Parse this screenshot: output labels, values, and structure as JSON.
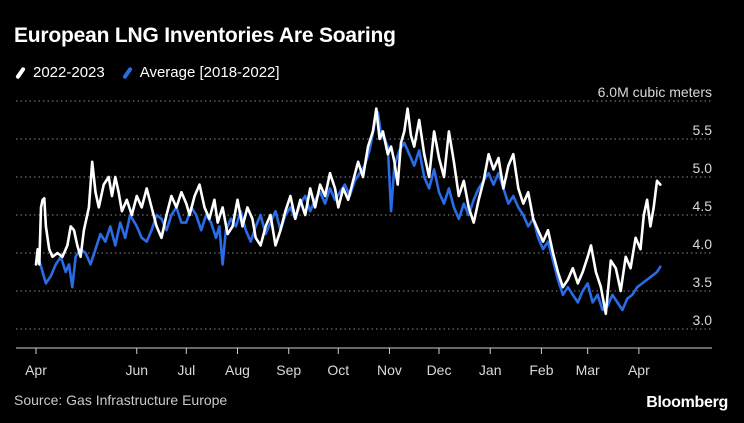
{
  "colors": {
    "background": "#000000",
    "series_2022": "#ffffff",
    "series_avg": "#2a6be6",
    "grid": "#8a8a8a"
  },
  "brand": "Bloomberg",
  "source": "Source: Gas Infrastructure Europe",
  "chart_data": {
    "type": "line",
    "title": "European LNG Inventories Are Soaring",
    "unit": "6.0M cubic meters",
    "ylim": [
      2.75,
      6.0
    ],
    "y_ticks": [
      "6.0M cubic meters",
      "5.5",
      "5.0",
      "4.5",
      "4.0",
      "3.5",
      "3.0"
    ],
    "x_ticks": [
      "Apr",
      "Jun",
      "Jul",
      "Aug",
      "Sep",
      "Oct",
      "Nov",
      "Dec",
      "Jan",
      "Feb",
      "Mar",
      "Apr"
    ],
    "x_tick_dates": [
      "2022-04-01",
      "2022-06-01",
      "2022-07-01",
      "2022-08-01",
      "2022-09-01",
      "2022-10-01",
      "2022-11-01",
      "2022-12-01",
      "2023-01-01",
      "2023-02-01",
      "2023-03-01",
      "2023-04-01"
    ],
    "xlim": [
      "2022-04-01",
      "2023-04-15"
    ],
    "grid": "horizontal dotted",
    "legend": "top-left",
    "series": [
      {
        "name": "2022-2023",
        "color": "#ffffff",
        "points": [
          [
            "2022-04-01",
            3.85
          ],
          [
            "2022-04-02",
            4.05
          ],
          [
            "2022-04-03",
            3.85
          ],
          [
            "2022-04-04",
            4.6
          ],
          [
            "2022-04-05",
            4.7
          ],
          [
            "2022-04-06",
            4.72
          ],
          [
            "2022-04-07",
            4.35
          ],
          [
            "2022-04-09",
            4.05
          ],
          [
            "2022-04-11",
            3.95
          ],
          [
            "2022-04-14",
            4.0
          ],
          [
            "2022-04-17",
            3.95
          ],
          [
            "2022-04-20",
            4.1
          ],
          [
            "2022-04-22",
            4.35
          ],
          [
            "2022-04-24",
            4.3
          ],
          [
            "2022-04-26",
            4.1
          ],
          [
            "2022-04-28",
            3.95
          ],
          [
            "2022-04-30",
            4.3
          ],
          [
            "2022-05-03",
            4.6
          ],
          [
            "2022-05-05",
            5.2
          ],
          [
            "2022-05-07",
            4.8
          ],
          [
            "2022-05-09",
            4.6
          ],
          [
            "2022-05-12",
            4.9
          ],
          [
            "2022-05-15",
            5.0
          ],
          [
            "2022-05-17",
            4.75
          ],
          [
            "2022-05-19",
            5.0
          ],
          [
            "2022-05-21",
            4.8
          ],
          [
            "2022-05-23",
            4.55
          ],
          [
            "2022-05-26",
            4.7
          ],
          [
            "2022-05-29",
            4.5
          ],
          [
            "2022-06-01",
            4.75
          ],
          [
            "2022-06-04",
            4.6
          ],
          [
            "2022-06-07",
            4.85
          ],
          [
            "2022-06-10",
            4.6
          ],
          [
            "2022-06-13",
            4.35
          ],
          [
            "2022-06-16",
            4.2
          ],
          [
            "2022-06-19",
            4.5
          ],
          [
            "2022-06-22",
            4.75
          ],
          [
            "2022-06-25",
            4.6
          ],
          [
            "2022-06-28",
            4.8
          ],
          [
            "2022-07-01",
            4.65
          ],
          [
            "2022-07-03",
            4.5
          ],
          [
            "2022-07-06",
            4.75
          ],
          [
            "2022-07-09",
            4.9
          ],
          [
            "2022-07-12",
            4.6
          ],
          [
            "2022-07-15",
            4.45
          ],
          [
            "2022-07-18",
            4.7
          ],
          [
            "2022-07-20",
            4.4
          ],
          [
            "2022-07-23",
            4.6
          ],
          [
            "2022-07-26",
            4.25
          ],
          [
            "2022-07-29",
            4.35
          ],
          [
            "2022-08-01",
            4.7
          ],
          [
            "2022-08-04",
            4.35
          ],
          [
            "2022-08-07",
            4.6
          ],
          [
            "2022-08-10",
            4.45
          ],
          [
            "2022-08-12",
            4.2
          ],
          [
            "2022-08-15",
            4.1
          ],
          [
            "2022-08-18",
            4.35
          ],
          [
            "2022-08-21",
            4.5
          ],
          [
            "2022-08-24",
            4.1
          ],
          [
            "2022-08-27",
            4.3
          ],
          [
            "2022-08-30",
            4.55
          ],
          [
            "2022-09-02",
            4.75
          ],
          [
            "2022-09-05",
            4.45
          ],
          [
            "2022-09-08",
            4.7
          ],
          [
            "2022-09-11",
            4.5
          ],
          [
            "2022-09-14",
            4.85
          ],
          [
            "2022-09-17",
            4.6
          ],
          [
            "2022-09-20",
            4.9
          ],
          [
            "2022-09-23",
            4.75
          ],
          [
            "2022-09-26",
            5.05
          ],
          [
            "2022-09-29",
            4.85
          ],
          [
            "2022-10-01",
            4.6
          ],
          [
            "2022-10-04",
            4.85
          ],
          [
            "2022-10-07",
            4.7
          ],
          [
            "2022-10-10",
            4.95
          ],
          [
            "2022-10-13",
            5.2
          ],
          [
            "2022-10-16",
            5.0
          ],
          [
            "2022-10-19",
            5.4
          ],
          [
            "2022-10-22",
            5.6
          ],
          [
            "2022-10-24",
            5.9
          ],
          [
            "2022-10-26",
            5.5
          ],
          [
            "2022-10-28",
            5.6
          ],
          [
            "2022-10-31",
            5.3
          ],
          [
            "2022-11-02",
            5.4
          ],
          [
            "2022-11-04",
            5.2
          ],
          [
            "2022-11-06",
            4.9
          ],
          [
            "2022-11-08",
            5.45
          ],
          [
            "2022-11-10",
            5.6
          ],
          [
            "2022-11-12",
            5.9
          ],
          [
            "2022-11-14",
            5.55
          ],
          [
            "2022-11-16",
            5.4
          ],
          [
            "2022-11-19",
            5.75
          ],
          [
            "2022-11-22",
            5.3
          ],
          [
            "2022-11-25",
            5.0
          ],
          [
            "2022-11-28",
            5.6
          ],
          [
            "2022-12-01",
            5.25
          ],
          [
            "2022-12-04",
            5.0
          ],
          [
            "2022-12-07",
            5.6
          ],
          [
            "2022-12-10",
            5.2
          ],
          [
            "2022-12-13",
            4.75
          ],
          [
            "2022-12-16",
            4.95
          ],
          [
            "2022-12-19",
            4.6
          ],
          [
            "2022-12-22",
            4.4
          ],
          [
            "2022-12-25",
            4.7
          ],
          [
            "2022-12-28",
            4.95
          ],
          [
            "2022-12-31",
            5.3
          ],
          [
            "2023-01-03",
            5.1
          ],
          [
            "2023-01-06",
            5.25
          ],
          [
            "2023-01-09",
            4.85
          ],
          [
            "2023-01-12",
            5.15
          ],
          [
            "2023-01-15",
            5.3
          ],
          [
            "2023-01-18",
            4.85
          ],
          [
            "2023-01-21",
            4.65
          ],
          [
            "2023-01-24",
            4.8
          ],
          [
            "2023-01-27",
            4.45
          ],
          [
            "2023-01-30",
            4.3
          ],
          [
            "2023-02-02",
            4.15
          ],
          [
            "2023-02-05",
            4.3
          ],
          [
            "2023-02-08",
            4.0
          ],
          [
            "2023-02-11",
            3.75
          ],
          [
            "2023-02-14",
            3.55
          ],
          [
            "2023-02-17",
            3.65
          ],
          [
            "2023-02-20",
            3.8
          ],
          [
            "2023-02-23",
            3.6
          ],
          [
            "2023-02-26",
            3.75
          ],
          [
            "2023-03-01",
            3.95
          ],
          [
            "2023-03-03",
            4.1
          ],
          [
            "2023-03-06",
            3.75
          ],
          [
            "2023-03-09",
            3.55
          ],
          [
            "2023-03-12",
            3.2
          ],
          [
            "2023-03-15",
            3.9
          ],
          [
            "2023-03-18",
            3.8
          ],
          [
            "2023-03-21",
            3.5
          ],
          [
            "2023-03-24",
            3.95
          ],
          [
            "2023-03-27",
            3.8
          ],
          [
            "2023-03-30",
            4.2
          ],
          [
            "2023-04-02",
            4.05
          ],
          [
            "2023-04-04",
            4.5
          ],
          [
            "2023-04-06",
            4.7
          ],
          [
            "2023-04-08",
            4.35
          ],
          [
            "2023-04-10",
            4.6
          ],
          [
            "2023-04-12",
            4.95
          ],
          [
            "2023-04-14",
            4.9
          ]
        ]
      },
      {
        "name": "Average [2018-2022]",
        "color": "#2a6be6",
        "points": [
          [
            "2022-04-01",
            3.85
          ],
          [
            "2022-04-03",
            3.9
          ],
          [
            "2022-04-05",
            3.75
          ],
          [
            "2022-04-07",
            3.6
          ],
          [
            "2022-04-10",
            3.7
          ],
          [
            "2022-04-13",
            3.85
          ],
          [
            "2022-04-16",
            3.95
          ],
          [
            "2022-04-19",
            3.75
          ],
          [
            "2022-04-21",
            3.85
          ],
          [
            "2022-04-23",
            3.55
          ],
          [
            "2022-04-25",
            3.95
          ],
          [
            "2022-04-28",
            4.05
          ],
          [
            "2022-05-01",
            4.0
          ],
          [
            "2022-05-04",
            3.85
          ],
          [
            "2022-05-07",
            4.05
          ],
          [
            "2022-05-10",
            4.25
          ],
          [
            "2022-05-13",
            4.15
          ],
          [
            "2022-05-16",
            4.35
          ],
          [
            "2022-05-19",
            4.1
          ],
          [
            "2022-05-22",
            4.4
          ],
          [
            "2022-05-25",
            4.2
          ],
          [
            "2022-05-28",
            4.5
          ],
          [
            "2022-06-01",
            4.35
          ],
          [
            "2022-06-04",
            4.2
          ],
          [
            "2022-06-07",
            4.15
          ],
          [
            "2022-06-10",
            4.3
          ],
          [
            "2022-06-13",
            4.5
          ],
          [
            "2022-06-16",
            4.45
          ],
          [
            "2022-06-19",
            4.3
          ],
          [
            "2022-06-22",
            4.5
          ],
          [
            "2022-06-25",
            4.6
          ],
          [
            "2022-06-28",
            4.4
          ],
          [
            "2022-07-01",
            4.4
          ],
          [
            "2022-07-04",
            4.6
          ],
          [
            "2022-07-07",
            4.5
          ],
          [
            "2022-07-10",
            4.3
          ],
          [
            "2022-07-13",
            4.5
          ],
          [
            "2022-07-16",
            4.4
          ],
          [
            "2022-07-19",
            4.2
          ],
          [
            "2022-07-21",
            4.35
          ],
          [
            "2022-07-23",
            3.85
          ],
          [
            "2022-07-25",
            4.3
          ],
          [
            "2022-07-28",
            4.45
          ],
          [
            "2022-07-31",
            4.35
          ],
          [
            "2022-08-03",
            4.55
          ],
          [
            "2022-08-06",
            4.3
          ],
          [
            "2022-08-09",
            4.15
          ],
          [
            "2022-08-12",
            4.35
          ],
          [
            "2022-08-15",
            4.5
          ],
          [
            "2022-08-18",
            4.25
          ],
          [
            "2022-08-21",
            4.4
          ],
          [
            "2022-08-24",
            4.55
          ],
          [
            "2022-08-27",
            4.3
          ],
          [
            "2022-08-30",
            4.5
          ],
          [
            "2022-09-02",
            4.6
          ],
          [
            "2022-09-05",
            4.45
          ],
          [
            "2022-09-08",
            4.65
          ],
          [
            "2022-09-11",
            4.75
          ],
          [
            "2022-09-14",
            4.55
          ],
          [
            "2022-09-17",
            4.7
          ],
          [
            "2022-09-20",
            4.8
          ],
          [
            "2022-09-23",
            4.65
          ],
          [
            "2022-09-26",
            4.85
          ],
          [
            "2022-09-29",
            4.7
          ],
          [
            "2022-10-02",
            4.8
          ],
          [
            "2022-10-05",
            4.9
          ],
          [
            "2022-10-08",
            4.75
          ],
          [
            "2022-10-11",
            4.95
          ],
          [
            "2022-10-14",
            5.05
          ],
          [
            "2022-10-17",
            5.15
          ],
          [
            "2022-10-20",
            5.35
          ],
          [
            "2022-10-23",
            5.7
          ],
          [
            "2022-10-25",
            5.85
          ],
          [
            "2022-10-27",
            5.55
          ],
          [
            "2022-10-29",
            5.5
          ],
          [
            "2022-10-31",
            5.4
          ],
          [
            "2022-11-02",
            4.55
          ],
          [
            "2022-11-04",
            5.15
          ],
          [
            "2022-11-07",
            5.35
          ],
          [
            "2022-11-10",
            5.45
          ],
          [
            "2022-11-13",
            5.3
          ],
          [
            "2022-11-16",
            5.15
          ],
          [
            "2022-11-19",
            5.35
          ],
          [
            "2022-11-22",
            5.0
          ],
          [
            "2022-11-25",
            4.85
          ],
          [
            "2022-11-28",
            5.1
          ],
          [
            "2022-12-01",
            4.8
          ],
          [
            "2022-12-04",
            4.65
          ],
          [
            "2022-12-07",
            4.85
          ],
          [
            "2022-12-10",
            4.6
          ],
          [
            "2022-12-13",
            4.45
          ],
          [
            "2022-12-16",
            4.65
          ],
          [
            "2022-12-19",
            4.5
          ],
          [
            "2022-12-22",
            4.7
          ],
          [
            "2022-12-25",
            4.85
          ],
          [
            "2022-12-28",
            4.95
          ],
          [
            "2022-12-31",
            5.05
          ],
          [
            "2023-01-03",
            4.9
          ],
          [
            "2023-01-06",
            5.05
          ],
          [
            "2023-01-09",
            4.85
          ],
          [
            "2023-01-12",
            4.65
          ],
          [
            "2023-01-15",
            4.75
          ],
          [
            "2023-01-18",
            4.6
          ],
          [
            "2023-01-21",
            4.5
          ],
          [
            "2023-01-24",
            4.35
          ],
          [
            "2023-01-27",
            4.45
          ],
          [
            "2023-01-30",
            4.2
          ],
          [
            "2023-02-02",
            4.05
          ],
          [
            "2023-02-05",
            4.15
          ],
          [
            "2023-02-08",
            3.9
          ],
          [
            "2023-02-11",
            3.65
          ],
          [
            "2023-02-14",
            3.45
          ],
          [
            "2023-02-17",
            3.55
          ],
          [
            "2023-02-20",
            3.45
          ],
          [
            "2023-02-23",
            3.35
          ],
          [
            "2023-02-26",
            3.5
          ],
          [
            "2023-03-01",
            3.6
          ],
          [
            "2023-03-04",
            3.35
          ],
          [
            "2023-03-07",
            3.45
          ],
          [
            "2023-03-10",
            3.25
          ],
          [
            "2023-03-13",
            3.3
          ],
          [
            "2023-03-16",
            3.45
          ],
          [
            "2023-03-19",
            3.35
          ],
          [
            "2023-03-22",
            3.25
          ],
          [
            "2023-03-25",
            3.4
          ],
          [
            "2023-03-28",
            3.45
          ],
          [
            "2023-03-31",
            3.55
          ],
          [
            "2023-04-03",
            3.6
          ],
          [
            "2023-04-06",
            3.65
          ],
          [
            "2023-04-09",
            3.7
          ],
          [
            "2023-04-12",
            3.75
          ],
          [
            "2023-04-14",
            3.82
          ]
        ]
      }
    ]
  }
}
